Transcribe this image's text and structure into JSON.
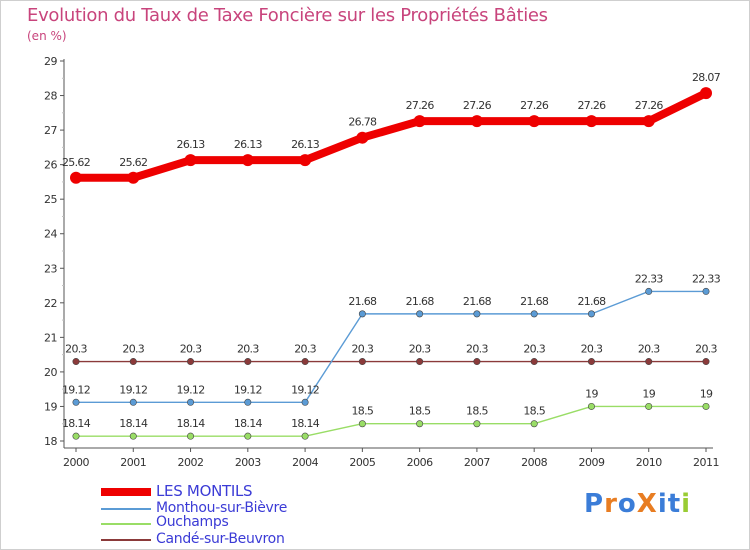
{
  "title": "Evolution du Taux de Taxe Foncière sur les Propriétés Bâties",
  "subtitle": "(en %)",
  "chart_data": {
    "type": "line",
    "title": "Evolution du Taux de Taxe Foncière sur les Propriétés Bâties",
    "ylabel": "(en %)",
    "xlabel": "",
    "x": [
      "2000",
      "2001",
      "2002",
      "2003",
      "2004",
      "2005",
      "2006",
      "2007",
      "2008",
      "2009",
      "2010",
      "2011"
    ],
    "ylim": [
      18,
      29
    ],
    "yticks": [
      "18",
      "19",
      "20",
      "21",
      "22",
      "23",
      "24",
      "25",
      "26",
      "27",
      "28",
      "29"
    ],
    "grid": false,
    "legend_position": "bottom-left",
    "series": [
      {
        "name": "LES MONTILS",
        "color": "#ee0000",
        "values": [
          25.62,
          25.62,
          26.13,
          26.13,
          26.13,
          26.78,
          27.26,
          27.26,
          27.26,
          27.26,
          27.26,
          28.07
        ],
        "labels": [
          "25.62",
          "25.62",
          "26.13",
          "26.13",
          "26.13",
          "26.78",
          "27.26",
          "27.26",
          "27.26",
          "27.26",
          "27.26",
          "28.07"
        ]
      },
      {
        "name": "Monthou-sur-Bièvre",
        "color": "#5b9bd5",
        "values": [
          19.12,
          19.12,
          19.12,
          19.12,
          19.12,
          21.68,
          21.68,
          21.68,
          21.68,
          21.68,
          22.33,
          22.33
        ],
        "labels": [
          "19.12",
          "19.12",
          "19.12",
          "19.12",
          "19.12",
          "21.68",
          "21.68",
          "21.68",
          "21.68",
          "21.68",
          "22.33",
          "22.33"
        ]
      },
      {
        "name": "Ouchamps",
        "color": "#99dd66",
        "values": [
          18.14,
          18.14,
          18.14,
          18.14,
          18.14,
          18.5,
          18.5,
          18.5,
          18.5,
          19,
          19,
          19
        ],
        "labels": [
          "18.14",
          "18.14",
          "18.14",
          "18.14",
          "18.14",
          "18.5",
          "18.5",
          "18.5",
          "18.5",
          "19",
          "19",
          "19"
        ]
      },
      {
        "name": "Candé-sur-Beuvron",
        "color": "#8b3a3a",
        "values": [
          20.3,
          20.3,
          20.3,
          20.3,
          20.3,
          20.3,
          20.3,
          20.3,
          20.3,
          20.3,
          20.3,
          20.3
        ],
        "labels": [
          "20.3",
          "20.3",
          "20.3",
          "20.3",
          "20.3",
          "20.3",
          "20.3",
          "20.3",
          "20.3",
          "20.3",
          "20.3",
          "20.3"
        ]
      }
    ]
  },
  "legend": {
    "items": [
      "LES MONTILS",
      "Monthou-sur-Bièvre",
      "Ouchamps",
      "Candé-sur-Beuvron"
    ]
  },
  "logo": {
    "text": "ProXiti",
    "letter_colors": [
      "#3b7dd8",
      "#e87d22",
      "#3b7dd8",
      "#e87d22",
      "#3b7dd8",
      "#3b7dd8",
      "#99cc33"
    ]
  }
}
